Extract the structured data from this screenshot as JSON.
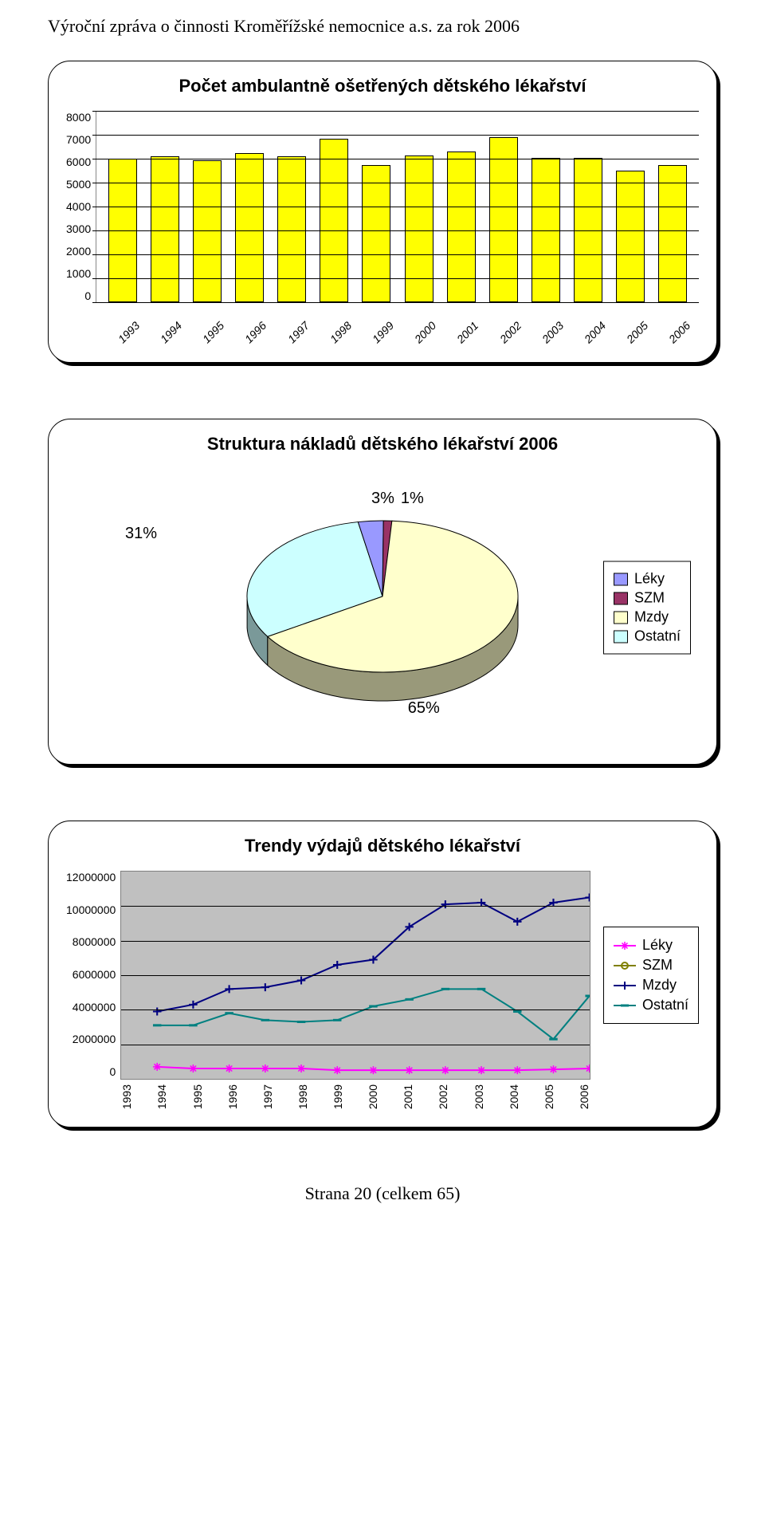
{
  "header": "Výroční zpráva o činnosti Kroměřížské nemocnice a.s. za rok 2006",
  "footer": "Strana 20 (celkem 65)",
  "bar_chart": {
    "title": "Počet ambulantně ošetřených dětského lékařství",
    "type": "bar",
    "categories": [
      "1993",
      "1994",
      "1995",
      "1996",
      "1997",
      "1998",
      "1999",
      "2000",
      "2001",
      "2002",
      "2003",
      "2004",
      "2005",
      "2006"
    ],
    "values": [
      6000,
      6100,
      5950,
      6250,
      6100,
      6850,
      5750,
      6150,
      6300,
      6900,
      6050,
      6050,
      5500,
      5750
    ],
    "ylim": [
      0,
      8000
    ],
    "ytick_step": 1000,
    "yticks": [
      "0",
      "1000",
      "2000",
      "3000",
      "4000",
      "5000",
      "6000",
      "7000",
      "8000"
    ],
    "bar_color": "#ffff00",
    "bar_border": "#000000",
    "grid_color": "#000000",
    "background": "#ffffff",
    "label_fontsize": 14,
    "title_fontsize": 22
  },
  "pie_chart": {
    "title": "Struktura nákladů dětského lékařství 2006",
    "type": "pie",
    "slices": [
      {
        "label": "Léky",
        "value": 3,
        "color": "#9999ff"
      },
      {
        "label": "SZM",
        "value": 1,
        "color": "#993366"
      },
      {
        "label": "Mzdy",
        "value": 65,
        "color": "#ffffcc"
      },
      {
        "label": "Ostatní",
        "value": 31,
        "color": "#ccffff"
      }
    ],
    "label_31": "31%",
    "label_3": "3%",
    "label_1": "1%",
    "label_65": "65%",
    "legend_items": [
      "Léky",
      "SZM",
      "Mzdy",
      "Ostatní"
    ],
    "legend_colors": [
      "#9999ff",
      "#993366",
      "#ffffcc",
      "#ccffff"
    ],
    "title_fontsize": 22,
    "label_fontsize": 20
  },
  "line_chart": {
    "title": "Trendy výdajů dětského lékařství",
    "type": "line",
    "categories": [
      "1993",
      "1994",
      "1995",
      "1996",
      "1997",
      "1998",
      "1999",
      "2000",
      "2001",
      "2002",
      "2003",
      "2004",
      "2005",
      "2006"
    ],
    "series": [
      {
        "name": "Léky",
        "color": "#ff00ff",
        "marker": "asterisk",
        "values": [
          null,
          700000,
          600000,
          600000,
          600000,
          600000,
          500000,
          500000,
          500000,
          500000,
          500000,
          500000,
          550000,
          600000
        ]
      },
      {
        "name": "SZM",
        "color": "#808000",
        "marker": "circle",
        "values": [
          null,
          null,
          null,
          null,
          null,
          null,
          null,
          null,
          null,
          null,
          null,
          null,
          null,
          null
        ]
      },
      {
        "name": "Mzdy",
        "color": "#000080",
        "marker": "plus",
        "values": [
          null,
          3900000,
          4300000,
          5200000,
          5300000,
          5700000,
          6600000,
          6900000,
          8800000,
          10100000,
          10200000,
          9100000,
          10200000,
          10500000
        ]
      },
      {
        "name": "Ostatní",
        "color": "#008080",
        "marker": "dash",
        "values": [
          null,
          3100000,
          3100000,
          3800000,
          3400000,
          3300000,
          3400000,
          4200000,
          4600000,
          5200000,
          5200000,
          3900000,
          2300000,
          4800000
        ]
      }
    ],
    "ylim": [
      0,
      12000000
    ],
    "ytick_step": 2000000,
    "yticks": [
      "0",
      "2000000",
      "4000000",
      "6000000",
      "8000000",
      "10000000",
      "12000000"
    ],
    "plot_bg": "#c0c0c0",
    "grid_color": "#000000",
    "title_fontsize": 22,
    "label_fontsize": 14,
    "legend_items": [
      "Léky",
      "SZM",
      "Mzdy",
      "Ostatní"
    ]
  }
}
